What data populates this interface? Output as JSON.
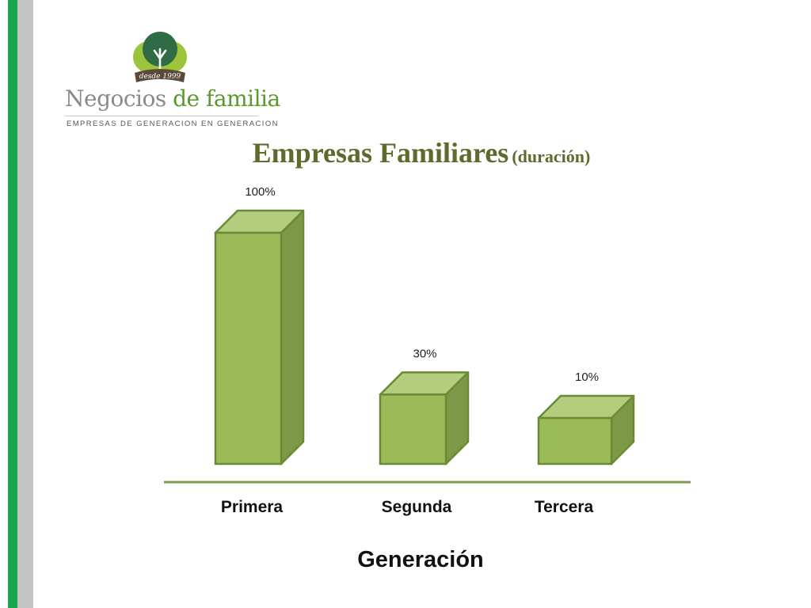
{
  "logo": {
    "badge_text": "desde 1999",
    "name_part1": "Negocios",
    "name_part2": "de familia",
    "tagline": "EMPRESAS DE GENERACION EN GENERACION"
  },
  "colors": {
    "stripe_green": "#1aa64a",
    "stripe_gray": "#c3c3c3",
    "title": "#5e6b2c",
    "bar_front": "#9bbb59",
    "bar_top": "#b3cc7d",
    "bar_side": "#7d9846",
    "bar_edge": "#6a8b35",
    "axis": "#7f9a4a"
  },
  "chart_data": {
    "type": "bar",
    "style": "3d-column",
    "title": "Empresas Familiares",
    "subtitle": "(duración)",
    "categories": [
      "Primera",
      "Segunda",
      "Tercera"
    ],
    "values": [
      100,
      30,
      10
    ],
    "data_labels": [
      "100%",
      "30%",
      "10%"
    ],
    "xlabel": "Generación",
    "ylabel": "",
    "ylim": [
      0,
      100
    ],
    "grid": false,
    "legend": "none"
  }
}
